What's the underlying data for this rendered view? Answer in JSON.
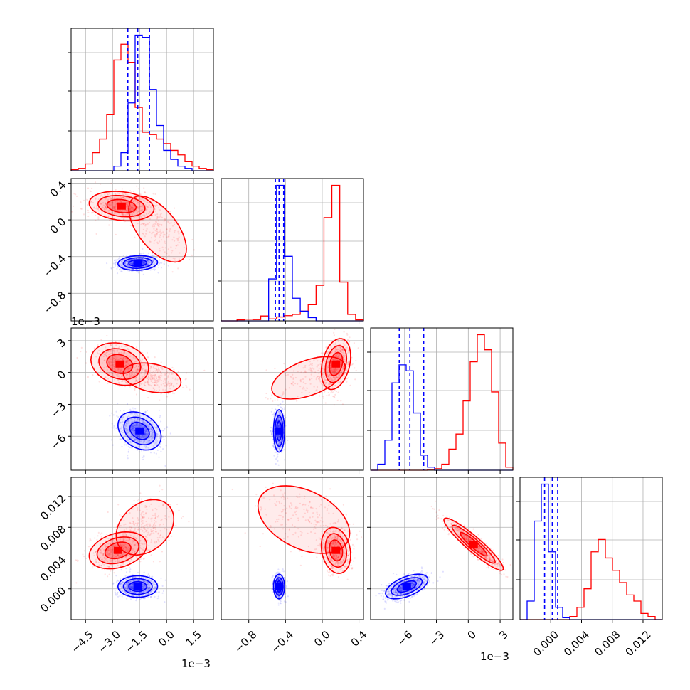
{
  "chart_data": {
    "type": "corner",
    "grid": true,
    "series_colors": {
      "red": "#ff0000",
      "blue": "#0000ff"
    },
    "quantile_line_style": "dashed",
    "parameters": [
      {
        "ticks": [
          -4.5,
          -3.0,
          -1.5,
          0.0,
          1.5
        ],
        "tick_labels": [
          "−4.5",
          "−3.0",
          "−1.5",
          "0.0",
          "1.5"
        ],
        "offset_label": "1e−3",
        "range": [
          -5.3,
          2.6
        ]
      },
      {
        "ticks": [
          -0.8,
          -0.4,
          0.0,
          0.4
        ],
        "tick_labels": [
          "−0.8",
          "−0.4",
          "0.0",
          "0.4"
        ],
        "range": [
          -1.1,
          0.45
        ]
      },
      {
        "ticks": [
          -6,
          -3,
          0,
          3
        ],
        "tick_labels": [
          "−6",
          "−3",
          "0",
          "3"
        ],
        "offset_label": "1e−3",
        "range": [
          -9.2,
          4.2
        ]
      },
      {
        "ticks": [
          0.0,
          0.004,
          0.008,
          0.012
        ],
        "tick_labels": [
          "0.000",
          "0.004",
          "0.008",
          "0.012"
        ],
        "range": [
          -0.004,
          0.0145
        ]
      }
    ],
    "histograms": [
      {
        "red": {
          "x0": -5.3,
          "x1": 2.6,
          "counts": [
            0.5,
            1,
            3,
            8,
            14,
            25,
            49,
            56,
            48,
            28,
            17,
            16,
            14,
            12,
            9,
            7,
            4,
            2,
            1,
            0.5
          ]
        },
        "blue": {
          "x0": -5.3,
          "x1": 2.6,
          "counts": [
            0,
            0,
            0,
            0,
            0,
            0,
            2,
            8,
            30,
            60,
            59,
            36,
            20,
            9,
            5,
            2,
            1,
            0,
            0,
            0
          ]
        },
        "blue_quantiles": [
          -2.15,
          -1.6,
          -0.95
        ]
      },
      {
        "red": {
          "x0": -1.1,
          "x1": 0.45,
          "counts": [
            0,
            0,
            0.3,
            0.5,
            0.4,
            1.5,
            0.6,
            1.2,
            1.6,
            2,
            3,
            5,
            11,
            32,
            42,
            12,
            2,
            0.3
          ]
        },
        "blue": {
          "x0": -1.1,
          "x1": 0.45,
          "counts": [
            0,
            0,
            0,
            0,
            0,
            0,
            13,
            42,
            20,
            7,
            3,
            1,
            0,
            0,
            0,
            0,
            0,
            0
          ]
        },
        "blue_quantiles": [
          -0.51,
          -0.47,
          -0.42
        ]
      },
      {
        "red": {
          "x0": -9.2,
          "x1": 4.2,
          "counts": [
            0,
            0,
            0,
            0,
            0,
            0,
            0,
            0,
            0.3,
            0.5,
            2,
            7,
            12,
            23,
            36,
            45,
            40,
            26,
            9,
            1
          ]
        },
        "blue": {
          "x0": -9.2,
          "x1": 4.2,
          "counts": [
            0,
            2,
            10,
            29,
            35,
            33,
            19,
            5,
            1,
            0,
            0,
            0,
            0,
            0,
            0,
            0,
            0,
            0,
            0,
            0
          ]
        },
        "blue_quantiles": [
          -6.5,
          -5.5,
          -4.2
        ]
      },
      {
        "red": {
          "x0": -0.004,
          "x1": 0.0145,
          "counts": [
            0,
            0,
            0,
            0,
            0,
            0,
            0,
            0.5,
            2,
            5,
            11,
            13,
            10,
            8,
            6,
            4,
            3,
            1,
            0.5,
            0
          ]
        },
        "blue": {
          "x0": -0.004,
          "x1": 0.0145,
          "counts": [
            0,
            3,
            16,
            22,
            11,
            2,
            0.3,
            0,
            0,
            0,
            0,
            0,
            0,
            0,
            0,
            0,
            0,
            0,
            0,
            0
          ]
        },
        "blue_quantiles": [
          -0.0008,
          0.0002,
          0.0009
        ]
      }
    ],
    "joint_distributions": [
      {
        "pair": [
          0,
          1
        ],
        "red": [
          {
            "mean": [
              -2.5,
              0.15
            ],
            "sd": [
              0.9,
              0.08
            ],
            "corr": -0.2,
            "weight": 0.7
          },
          {
            "mean": [
              -0.5,
              -0.1
            ],
            "sd": [
              0.8,
              0.18
            ],
            "corr": -0.6,
            "weight": 0.3
          }
        ],
        "blue": [
          {
            "mean": [
              -1.6,
              -0.47
            ],
            "sd": [
              0.55,
              0.04
            ],
            "corr": 0.1,
            "weight": 1
          }
        ]
      },
      {
        "pair": [
          0,
          2
        ],
        "red": [
          {
            "mean": [
              -2.6,
              0.8
            ],
            "sd": [
              0.8,
              1.0
            ],
            "corr": -0.2,
            "weight": 0.6
          },
          {
            "mean": [
              -0.8,
              -0.5
            ],
            "sd": [
              0.8,
              0.7
            ],
            "corr": -0.3,
            "weight": 0.4
          }
        ],
        "blue": [
          {
            "mean": [
              -1.5,
              -5.5
            ],
            "sd": [
              0.6,
              0.9
            ],
            "corr": -0.3,
            "weight": 1
          }
        ]
      },
      {
        "pair": [
          1,
          2
        ],
        "red": [
          {
            "mean": [
              0.15,
              0.8
            ],
            "sd": [
              0.08,
              1.2
            ],
            "corr": 0.3,
            "weight": 0.75
          },
          {
            "mean": [
              -0.15,
              -0.5
            ],
            "sd": [
              0.2,
              1.0
            ],
            "corr": 0.5,
            "weight": 0.25
          }
        ],
        "blue": [
          {
            "mean": [
              -0.47,
              -5.5
            ],
            "sd": [
              0.03,
              1.0
            ],
            "corr": 0.0,
            "weight": 1
          }
        ]
      },
      {
        "pair": [
          0,
          3
        ],
        "red": [
          {
            "mean": [
              -2.7,
              0.005
            ],
            "sd": [
              0.8,
              0.0012
            ],
            "corr": 0.3,
            "weight": 0.6
          },
          {
            "mean": [
              -1.2,
              0.008
            ],
            "sd": [
              0.8,
              0.0018
            ],
            "corr": 0.3,
            "weight": 0.4
          }
        ],
        "blue": [
          {
            "mean": [
              -1.6,
              0.0003
            ],
            "sd": [
              0.55,
              0.0007
            ],
            "corr": 0.0,
            "weight": 1
          }
        ]
      },
      {
        "pair": [
          1,
          3
        ],
        "red": [
          {
            "mean": [
              0.15,
              0.005
            ],
            "sd": [
              0.08,
              0.0015
            ],
            "corr": -0.2,
            "weight": 0.7
          },
          {
            "mean": [
              -0.2,
              0.009
            ],
            "sd": [
              0.25,
              0.0022
            ],
            "corr": -0.4,
            "weight": 0.3
          }
        ],
        "blue": [
          {
            "mean": [
              -0.47,
              0.0003
            ],
            "sd": [
              0.03,
              0.0008
            ],
            "corr": 0.0,
            "weight": 1
          }
        ]
      },
      {
        "pair": [
          2,
          3
        ],
        "red": [
          {
            "mean": [
              0.5,
              0.0058
            ],
            "sd": [
              1.4,
              0.0017
            ],
            "corr": -0.93,
            "weight": 1
          }
        ],
        "blue": [
          {
            "mean": [
              -5.8,
              0.0003
            ],
            "sd": [
              1.0,
              0.0008
            ],
            "corr": 0.55,
            "weight": 1
          }
        ]
      }
    ]
  }
}
